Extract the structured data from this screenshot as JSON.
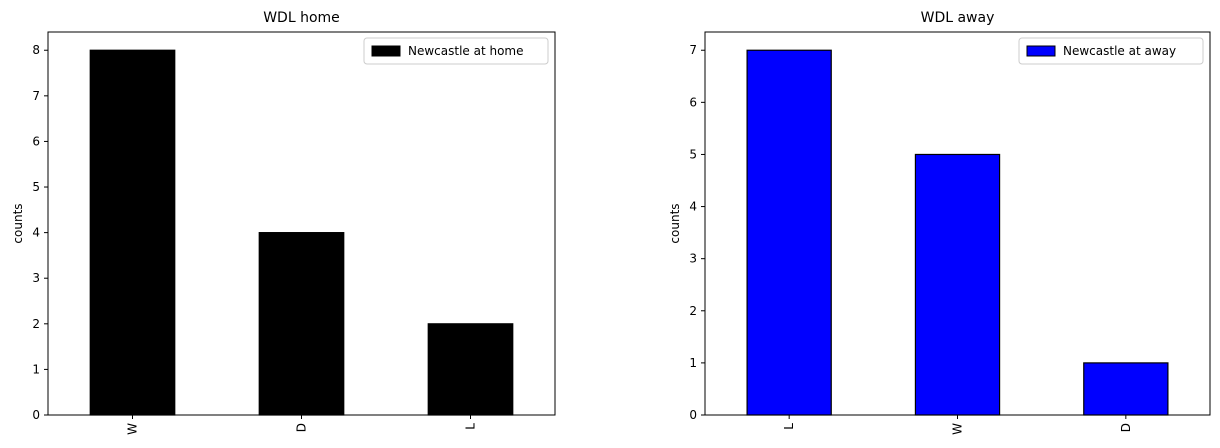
{
  "chart_data": [
    {
      "type": "bar",
      "title": "WDL home",
      "xlabel": "",
      "ylabel": "counts",
      "categories": [
        "W",
        "D",
        "L"
      ],
      "series": [
        {
          "name": "Newcastle at home",
          "values": [
            8,
            4,
            2
          ]
        }
      ],
      "ylim": [
        0,
        8.4
      ],
      "yticks": [
        0,
        1,
        2,
        3,
        4,
        5,
        6,
        7,
        8
      ],
      "grid": false,
      "legend": "top-right",
      "bar_color": "#000000",
      "edge_color": "#000000"
    },
    {
      "type": "bar",
      "title": "WDL away",
      "xlabel": "",
      "ylabel": "counts",
      "categories": [
        "L",
        "W",
        "D"
      ],
      "series": [
        {
          "name": "Newcastle at away",
          "values": [
            7,
            5,
            1
          ]
        }
      ],
      "ylim": [
        0,
        7.35
      ],
      "yticks": [
        0,
        1,
        2,
        3,
        4,
        5,
        6,
        7
      ],
      "grid": false,
      "legend": "top-right",
      "bar_color": "#0000ff",
      "edge_color": "#000000"
    }
  ]
}
